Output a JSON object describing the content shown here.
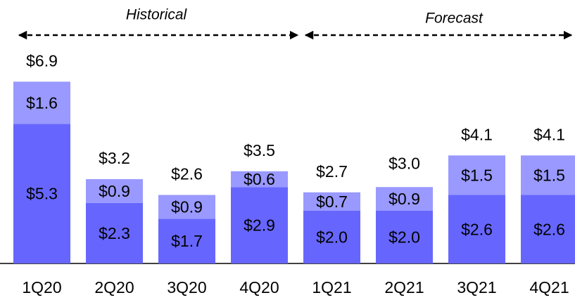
{
  "chart_data": {
    "type": "stacked_bar",
    "annotations": [
      "Historical",
      "Forecast"
    ],
    "categories": [
      "1Q20",
      "2Q20",
      "3Q20",
      "4Q20",
      "1Q21",
      "2Q21",
      "3Q21",
      "4Q21"
    ],
    "series": [
      {
        "color": "#6666ff",
        "values": [
          5.3,
          2.3,
          1.7,
          2.9,
          2.0,
          2.0,
          2.6,
          2.6
        ],
        "value_labels": [
          "$5.3",
          "$2.3",
          "$1.7",
          "$2.9",
          "$2.0",
          "$2.0",
          "$2.6",
          "$2.6"
        ]
      },
      {
        "color": "#9999ff",
        "values": [
          1.6,
          0.9,
          0.9,
          0.6,
          0.7,
          0.9,
          1.5,
          1.5
        ],
        "value_labels": [
          "$1.6",
          "$0.9",
          "$0.9",
          "$0.6",
          "$0.7",
          "$0.9",
          "$1.5",
          "$1.5"
        ]
      }
    ],
    "totals": [
      6.9,
      3.2,
      2.6,
      3.5,
      2.7,
      3.0,
      4.1,
      4.1
    ],
    "total_labels": [
      "$6.9",
      "$3.2",
      "$2.6",
      "$3.5",
      "$2.7",
      "$3.0",
      "$4.1",
      "$4.1"
    ],
    "ylim": [
      0,
      7
    ]
  }
}
